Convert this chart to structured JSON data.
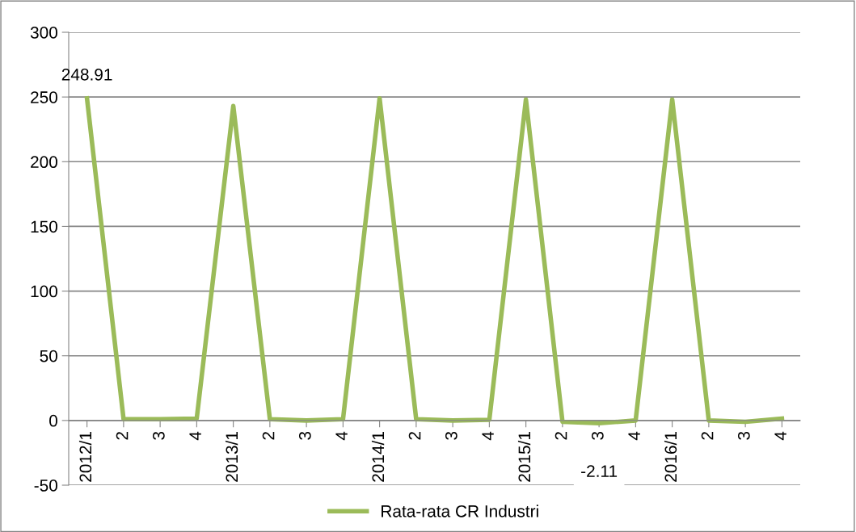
{
  "chart_data": {
    "type": "line",
    "categories": [
      "2012/1",
      "2",
      "3",
      "4",
      "2013/1",
      "2",
      "3",
      "4",
      "2014/1",
      "2",
      "3",
      "4",
      "2015/1",
      "2",
      "3",
      "4",
      "2016/1",
      "2",
      "3",
      "4"
    ],
    "series": [
      {
        "name": "Rata-rata CR Industri",
        "color": "#9bbb59",
        "values": [
          248.91,
          1,
          1,
          1.5,
          243,
          1,
          0,
          1,
          249,
          1,
          0,
          0.5,
          248,
          -1,
          -2.11,
          0,
          248,
          0,
          -1,
          1.5
        ],
        "value_labels": [
          "248.91",
          null,
          null,
          null,
          null,
          null,
          null,
          null,
          null,
          null,
          null,
          null,
          null,
          null,
          "-2.11",
          null,
          null,
          null,
          null,
          null
        ]
      }
    ],
    "ylim": [
      -50,
      300
    ],
    "yticks": [
      -50,
      0,
      50,
      100,
      150,
      200,
      250,
      300
    ],
    "grid": "y",
    "legend": "bottom",
    "marker": "none",
    "line_style": "solid"
  }
}
